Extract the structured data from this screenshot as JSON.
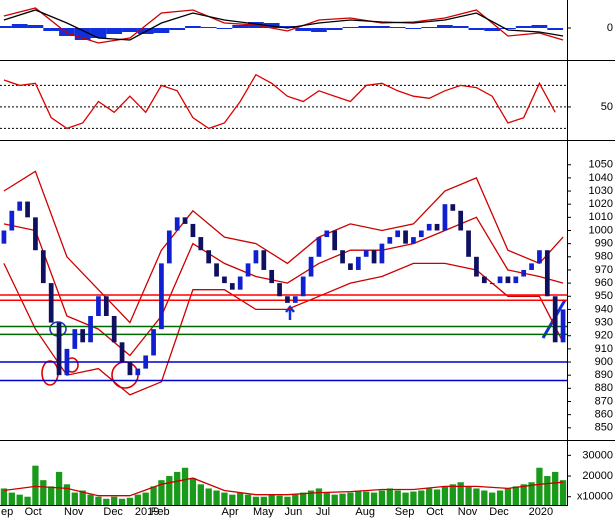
{
  "chart_data": [
    {
      "type": "macd",
      "ylim": [
        -29,
        28
      ],
      "yticks": [
        0
      ],
      "histogram": {
        "x": [
          0,
          2,
          4,
          6,
          8,
          10,
          12,
          14,
          16,
          18,
          20,
          22,
          24,
          26,
          28,
          30,
          32,
          34,
          36,
          38,
          40,
          42,
          44,
          46,
          48,
          50,
          52,
          54,
          56,
          58,
          60,
          62,
          64,
          66,
          68,
          70
        ],
        "values": [
          2,
          4,
          3,
          -3,
          -8,
          -12,
          -10,
          -6,
          -4,
          -6,
          -5,
          -2,
          2,
          1,
          -1,
          3,
          6,
          5,
          2,
          -3,
          -4,
          -2,
          1,
          2,
          2,
          1,
          -1,
          1,
          3,
          2,
          -2,
          -3,
          -1,
          2,
          3,
          -2
        ],
        "color": "#1030e0"
      },
      "lines": [
        {
          "x": [
            0,
            4,
            8,
            12,
            16,
            20,
            24,
            28,
            32,
            36,
            40,
            44,
            48,
            52,
            56,
            60,
            64,
            68,
            71
          ],
          "values": [
            12,
            20,
            -5,
            -15,
            -10,
            15,
            18,
            5,
            3,
            -3,
            8,
            10,
            5,
            6,
            10,
            18,
            -8,
            -5,
            -12
          ],
          "color": "#cc0000"
        },
        {
          "x": [
            0,
            4,
            8,
            12,
            16,
            20,
            24,
            28,
            32,
            36,
            40,
            44,
            48,
            52,
            56,
            60,
            64,
            68,
            71
          ],
          "values": [
            8,
            18,
            5,
            -10,
            -12,
            5,
            15,
            8,
            4,
            0,
            5,
            8,
            6,
            5,
            8,
            15,
            -2,
            -4,
            -8
          ],
          "color": "#000000"
        }
      ]
    },
    {
      "type": "line",
      "ylim": [
        22,
        89
      ],
      "yticks": [
        50
      ],
      "reference_lines": [
        30,
        50,
        70
      ],
      "series": [
        {
          "x": [
            0,
            2,
            4,
            6,
            8,
            10,
            12,
            14,
            16,
            18,
            20,
            22,
            24,
            26,
            28,
            30,
            32,
            34,
            36,
            38,
            40,
            42,
            44,
            46,
            48,
            50,
            52,
            54,
            56,
            58,
            60,
            62,
            64,
            66,
            68,
            70
          ],
          "values": [
            75,
            70,
            72,
            40,
            30,
            35,
            55,
            45,
            60,
            45,
            70,
            65,
            40,
            30,
            35,
            55,
            80,
            72,
            60,
            55,
            65,
            60,
            55,
            70,
            72,
            65,
            60,
            58,
            65,
            70,
            68,
            60,
            35,
            40,
            72,
            45
          ],
          "color": "#dd0000"
        }
      ]
    },
    {
      "type": "candlestick",
      "ylim": [
        843,
        1065
      ],
      "yticks": [
        850,
        860,
        870,
        880,
        890,
        900,
        910,
        920,
        930,
        940,
        950,
        960,
        970,
        980,
        990,
        1000,
        1010,
        1020,
        1030,
        1040,
        1050
      ],
      "open": [
        990,
        1000,
        1015,
        1022,
        1010,
        985,
        960,
        930,
        890,
        910,
        925,
        915,
        935,
        950,
        935,
        915,
        900,
        890,
        895,
        905,
        925,
        975,
        1000,
        1010,
        1005,
        995,
        985,
        975,
        965,
        960,
        955,
        965,
        975,
        985,
        970,
        960,
        950,
        945,
        950,
        965,
        980,
        995,
        1000,
        985,
        975,
        970,
        980,
        985,
        975,
        990,
        995,
        1000,
        990,
        995,
        1000,
        1005,
        1000,
        1020,
        1015,
        1000,
        980,
        965,
        960,
        960,
        965,
        960,
        965,
        970,
        975,
        985,
        950,
        915
      ],
      "close": [
        1000,
        1015,
        1022,
        1010,
        985,
        960,
        930,
        890,
        910,
        925,
        915,
        935,
        950,
        935,
        915,
        900,
        890,
        895,
        905,
        925,
        975,
        1000,
        1010,
        1005,
        995,
        985,
        975,
        965,
        960,
        955,
        965,
        975,
        985,
        970,
        960,
        950,
        945,
        950,
        965,
        980,
        995,
        1000,
        985,
        975,
        970,
        980,
        985,
        975,
        990,
        995,
        1000,
        990,
        995,
        1000,
        1005,
        1000,
        1020,
        1015,
        1000,
        980,
        965,
        960,
        960,
        965,
        960,
        965,
        970,
        975,
        985,
        950,
        915,
        940
      ],
      "up_color": "#1020d0",
      "down_color": "#101060",
      "bands": [
        {
          "x": [
            0,
            4,
            8,
            12,
            16,
            20,
            24,
            28,
            32,
            36,
            40,
            44,
            48,
            52,
            56,
            60,
            64,
            68,
            71
          ],
          "values": [
            1030,
            1045,
            980,
            955,
            930,
            985,
            1015,
            995,
            990,
            975,
            995,
            1005,
            1000,
            1005,
            1030,
            1040,
            985,
            975,
            995
          ],
          "color": "#cc0000"
        },
        {
          "x": [
            0,
            4,
            8,
            12,
            16,
            20,
            24,
            28,
            32,
            36,
            40,
            44,
            48,
            52,
            56,
            60,
            64,
            68,
            71
          ],
          "values": [
            1005,
            1000,
            935,
            925,
            905,
            935,
            990,
            975,
            965,
            960,
            975,
            985,
            985,
            990,
            1000,
            1010,
            970,
            965,
            960
          ],
          "color": "#cc0000"
        },
        {
          "x": [
            0,
            4,
            8,
            12,
            16,
            20,
            24,
            28,
            32,
            36,
            40,
            44,
            48,
            52,
            56,
            60,
            64,
            68,
            71
          ],
          "values": [
            975,
            925,
            890,
            895,
            875,
            885,
            955,
            955,
            940,
            940,
            950,
            960,
            965,
            975,
            975,
            970,
            950,
            950,
            915
          ],
          "color": "#cc0000"
        }
      ],
      "hlines": [
        {
          "value": 951,
          "color": "#ff0000"
        },
        {
          "value": 947,
          "color": "#ff0000"
        },
        {
          "value": 927,
          "color": "#006600"
        },
        {
          "value": 921,
          "color": "#006600"
        },
        {
          "value": 900,
          "color": "#0000cc"
        },
        {
          "value": 886,
          "color": "#0000cc"
        }
      ]
    },
    {
      "type": "bar",
      "ylim": [
        6000,
        35000
      ],
      "yticks": [
        {
          "value": 10000,
          "label": "x10000"
        },
        20000,
        30000
      ],
      "categories": [
        "ep",
        null,
        null,
        "Oct",
        null,
        null,
        null,
        null,
        "Nov",
        null,
        null,
        null,
        null,
        "Dec",
        null,
        null,
        null,
        "2019",
        null,
        "Feb",
        null,
        null,
        null,
        null,
        null,
        null,
        null,
        null,
        "Apr",
        null,
        null,
        null,
        "May",
        null,
        null,
        null,
        "Jun",
        null,
        null,
        null,
        "Jul",
        null,
        null,
        null,
        null,
        "Aug",
        null,
        null,
        null,
        null,
        "Sep",
        null,
        null,
        null,
        "Oct",
        null,
        null,
        null,
        "Nov",
        null,
        null,
        null,
        "Dec",
        null,
        null,
        null,
        null,
        "2020",
        null,
        null,
        null,
        null
      ],
      "values": [
        14000,
        12000,
        11000,
        10000,
        25000,
        18000,
        15000,
        22000,
        16000,
        12000,
        13000,
        11000,
        10000,
        9000,
        10000,
        9000,
        9500,
        11000,
        12000,
        15000,
        18000,
        20000,
        22000,
        24000,
        19000,
        16000,
        14000,
        13000,
        12000,
        11000,
        12000,
        11000,
        10000,
        10000,
        11000,
        10500,
        10000,
        11000,
        12000,
        13000,
        14000,
        12000,
        11000,
        11500,
        12000,
        13000,
        12500,
        12000,
        13000,
        14000,
        13000,
        12000,
        12500,
        13000,
        14000,
        13500,
        15000,
        16000,
        17000,
        15000,
        14000,
        13000,
        12000,
        13000,
        14000,
        15000,
        16000,
        17000,
        24000,
        20000,
        22000,
        18000
      ],
      "color": "#1a9a1a",
      "lines": [
        {
          "x": [
            0,
            4,
            8,
            12,
            16,
            20,
            24,
            28,
            32,
            36,
            40,
            44,
            48,
            52,
            56,
            60,
            64,
            68,
            71
          ],
          "values": [
            13000,
            15000,
            14000,
            10500,
            10500,
            16000,
            19000,
            13000,
            11000,
            11000,
            12000,
            12500,
            13500,
            13500,
            15000,
            15000,
            14000,
            16000,
            17000
          ],
          "color": "#cc0000"
        }
      ]
    }
  ]
}
